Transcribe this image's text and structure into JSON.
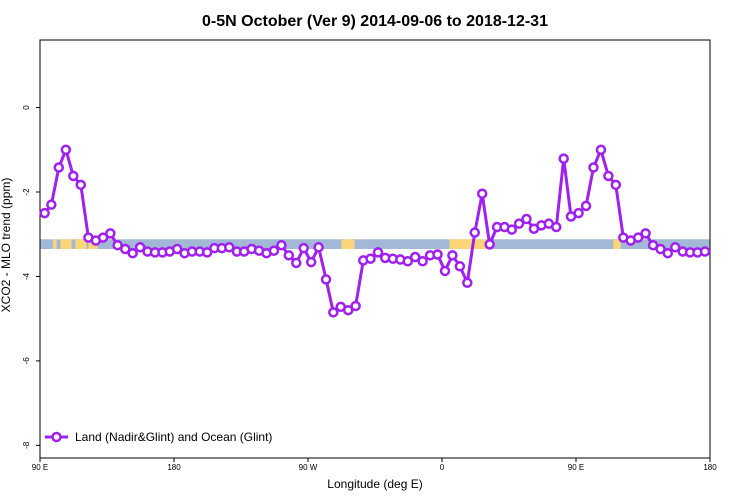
{
  "chart_data": {
    "type": "line",
    "title": "0-5N October (Ver 9)   2014-09-06 to 2018-12-31",
    "xlabel": "Longitude (deg E)",
    "ylabel": "XCO2 - MLO trend (ppm)",
    "xlim": [
      90,
      450
    ],
    "ylim": [
      -8.3,
      1.6
    ],
    "xticks": [
      {
        "value": 90,
        "label": "90 E"
      },
      {
        "value": 162,
        "label": "180"
      },
      {
        "value": 234,
        "label": "90 W"
      },
      {
        "value": 306,
        "label": "0"
      },
      {
        "value": 378,
        "label": "90 E"
      },
      {
        "value": 450,
        "label": "180"
      }
    ],
    "yticks": [
      0,
      -2,
      -4,
      -6,
      -8
    ],
    "grid": false,
    "legend_position": "bottom-left",
    "series": [
      {
        "name": "Land (Nadir&Glint) and Ocean (Glint)",
        "color": "#a020f0",
        "x": [
          92.5,
          96.1,
          100.1,
          103.9,
          107.9,
          111.9,
          116.0,
          120.0,
          123.9,
          127.8,
          131.7,
          135.8,
          139.8,
          143.8,
          147.8,
          151.8,
          155.8,
          159.7,
          163.7,
          167.7,
          171.7,
          175.8,
          179.8,
          183.7,
          187.7,
          191.7,
          195.8,
          199.7,
          203.7,
          207.7,
          211.7,
          215.7,
          219.7,
          223.7,
          227.7,
          231.7,
          235.7,
          239.7,
          243.7,
          247.6,
          251.6,
          255.6,
          259.6,
          263.7,
          267.6,
          271.6,
          275.5,
          279.6,
          283.6,
          287.6,
          291.6,
          295.6,
          299.6,
          303.6,
          307.6,
          311.6,
          315.6,
          319.6,
          323.6,
          327.6,
          331.6,
          335.6,
          339.6,
          343.5,
          347.4,
          351.4,
          355.4,
          359.4,
          363.4,
          367.4,
          371.4,
          375.3,
          379.4,
          383.4,
          387.4,
          391.4,
          395.4,
          399.4,
          403.4,
          407.4,
          411.4,
          415.4,
          419.4,
          423.4,
          427.3,
          431.3,
          435.3,
          439.3,
          443.3,
          447.3
        ],
        "y": [
          -2.5,
          -2.3,
          -1.42,
          -1.0,
          -1.62,
          -1.83,
          -3.08,
          -3.15,
          -3.08,
          -2.98,
          -3.26,
          -3.35,
          -3.45,
          -3.31,
          -3.41,
          -3.43,
          -3.43,
          -3.41,
          -3.35,
          -3.45,
          -3.41,
          -3.41,
          -3.43,
          -3.33,
          -3.33,
          -3.31,
          -3.41,
          -3.41,
          -3.35,
          -3.39,
          -3.45,
          -3.39,
          -3.26,
          -3.5,
          -3.68,
          -3.33,
          -3.66,
          -3.31,
          -4.07,
          -4.85,
          -4.72,
          -4.8,
          -4.7,
          -3.62,
          -3.58,
          -3.43,
          -3.56,
          -3.58,
          -3.6,
          -3.64,
          -3.54,
          -3.64,
          -3.5,
          -3.48,
          -3.87,
          -3.5,
          -3.76,
          -4.15,
          -2.96,
          -2.04,
          -3.24,
          -2.83,
          -2.83,
          -2.89,
          -2.75,
          -2.64,
          -2.87,
          -2.79,
          -2.75,
          -2.83,
          -1.21,
          -2.58,
          -2.5,
          -2.33,
          -1.42,
          -1.0,
          -1.62,
          -1.83,
          -3.08,
          -3.15,
          -3.08,
          -2.98,
          -3.26,
          -3.35,
          -3.45,
          -3.31,
          -3.41,
          -3.43,
          -3.43,
          -3.41
        ]
      }
    ],
    "background_band": {
      "y_top": -3.12,
      "y_bottom": -3.35,
      "ocean_color": "#a3b8d6",
      "land_color": "#fbd679",
      "land_ranges": [
        [
          97,
          99
        ],
        [
          101,
          107
        ],
        [
          109,
          115
        ],
        [
          116,
          121
        ],
        [
          252,
          259
        ],
        [
          310,
          332
        ],
        [
          398,
          402
        ]
      ]
    }
  }
}
